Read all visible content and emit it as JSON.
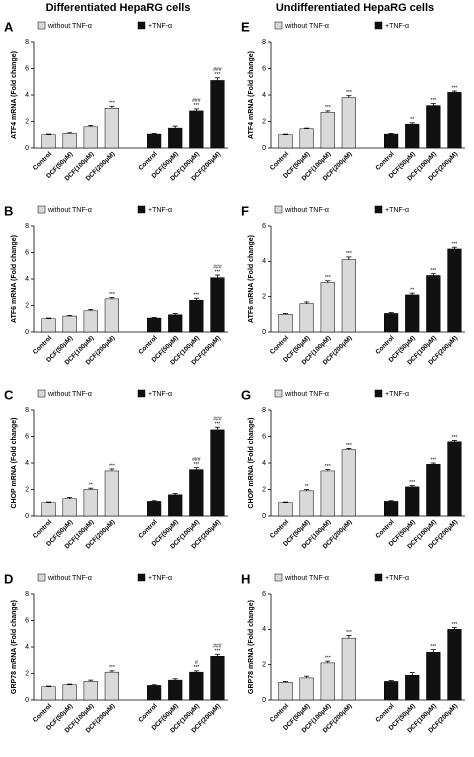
{
  "headers": [
    "Differentiated HepaRG cells",
    "Undifferentiated HepaRG cells"
  ],
  "chart_data": [
    {
      "type": "bar",
      "panel": "A",
      "ylabel": "ATF4 mRNA (Fold change)",
      "ylim": [
        0,
        8
      ],
      "yticks": [
        0,
        2,
        4,
        6,
        8
      ],
      "categories": [
        "Control",
        "DCF(50μM)",
        "DCF(100μM)",
        "DCF(200μM)",
        "Control",
        "DCF(50μM)",
        "DCF(100μM)",
        "DCF(200μM)"
      ],
      "series": [
        {
          "name": "without TNF-α",
          "color": "#d9d9d9",
          "values": [
            1,
            1.1,
            1.6,
            3.0,
            null,
            null,
            null,
            null
          ],
          "errors": [
            0.05,
            0.05,
            0.1,
            0.15,
            null,
            null,
            null,
            null
          ],
          "annotations": [
            null,
            null,
            null,
            [
              "***"
            ],
            null,
            null,
            null,
            null
          ]
        },
        {
          "name": "+TNF-α",
          "color": "#111111",
          "values": [
            null,
            null,
            null,
            null,
            1.05,
            1.5,
            2.8,
            5.1
          ],
          "errors": [
            null,
            null,
            null,
            null,
            0.05,
            0.15,
            0.15,
            0.2
          ],
          "annotations": [
            null,
            null,
            null,
            null,
            null,
            null,
            [
              "###",
              "***"
            ],
            [
              "###",
              "***"
            ]
          ]
        }
      ]
    },
    {
      "type": "bar",
      "panel": "B",
      "ylabel": "ATF6 mRNA (Fold change)",
      "ylim": [
        0,
        8
      ],
      "yticks": [
        0,
        2,
        4,
        6,
        8
      ],
      "categories": [
        "Control",
        "DCF(50μM)",
        "DCF(100μM)",
        "DCF(200μM)",
        "Control",
        "DCF(50μM)",
        "DCF(100μM)",
        "DCF(200μM)"
      ],
      "series": [
        {
          "name": "without TNF-α",
          "color": "#d9d9d9",
          "values": [
            1,
            1.2,
            1.6,
            2.5,
            null,
            null,
            null,
            null
          ],
          "errors": [
            0.05,
            0.05,
            0.1,
            0.1,
            null,
            null,
            null,
            null
          ],
          "annotations": [
            null,
            null,
            null,
            [
              "***"
            ],
            null,
            null,
            null,
            null
          ]
        },
        {
          "name": "+TNF-α",
          "color": "#111111",
          "values": [
            null,
            null,
            null,
            null,
            1.05,
            1.3,
            2.4,
            4.1
          ],
          "errors": [
            null,
            null,
            null,
            null,
            0.05,
            0.1,
            0.15,
            0.2
          ],
          "annotations": [
            null,
            null,
            null,
            null,
            null,
            null,
            [
              "***"
            ],
            [
              "###",
              "***"
            ]
          ]
        }
      ]
    },
    {
      "type": "bar",
      "panel": "C",
      "ylabel": "CHOP mRNA (Fold change)",
      "ylim": [
        0,
        8
      ],
      "yticks": [
        0,
        2,
        4,
        6,
        8
      ],
      "categories": [
        "Control",
        "DCF(50μM)",
        "DCF(100μM)",
        "DCF(200μM)",
        "Control",
        "DCF(50μM)",
        "DCF(100μM)",
        "DCF(200μM)"
      ],
      "series": [
        {
          "name": "without TNF-α",
          "color": "#d9d9d9",
          "values": [
            1,
            1.3,
            2.0,
            3.4,
            null,
            null,
            null,
            null
          ],
          "errors": [
            0.05,
            0.1,
            0.1,
            0.15,
            null,
            null,
            null,
            null
          ],
          "annotations": [
            null,
            null,
            [
              "**"
            ],
            [
              "***"
            ],
            null,
            null,
            null,
            null
          ]
        },
        {
          "name": "+TNF-α",
          "color": "#111111",
          "values": [
            null,
            null,
            null,
            null,
            1.1,
            1.6,
            3.5,
            6.5
          ],
          "errors": [
            null,
            null,
            null,
            null,
            0.05,
            0.1,
            0.15,
            0.2
          ],
          "annotations": [
            null,
            null,
            null,
            null,
            null,
            null,
            [
              "###",
              "***"
            ],
            [
              "###",
              "***"
            ]
          ]
        }
      ]
    },
    {
      "type": "bar",
      "panel": "D",
      "ylabel": "GRP78 mRNA (Fold change)",
      "ylim": [
        0,
        8
      ],
      "yticks": [
        0,
        2,
        4,
        6,
        8
      ],
      "categories": [
        "Control",
        "DCF(50μM)",
        "DCF(100μM)",
        "DCF(200μM)",
        "Control",
        "DCF(50μM)",
        "DCF(100μM)",
        "DCF(200μM)"
      ],
      "series": [
        {
          "name": "without TNF-α",
          "color": "#d9d9d9",
          "values": [
            1,
            1.15,
            1.4,
            2.1,
            null,
            null,
            null,
            null
          ],
          "errors": [
            0.05,
            0.05,
            0.1,
            0.1,
            null,
            null,
            null,
            null
          ],
          "annotations": [
            null,
            null,
            null,
            [
              "***"
            ],
            null,
            null,
            null,
            null
          ]
        },
        {
          "name": "+TNF-α",
          "color": "#111111",
          "values": [
            null,
            null,
            null,
            null,
            1.1,
            1.5,
            2.1,
            3.3
          ],
          "errors": [
            null,
            null,
            null,
            null,
            0.05,
            0.1,
            0.1,
            0.15
          ],
          "annotations": [
            null,
            null,
            null,
            null,
            null,
            null,
            [
              "#",
              "***"
            ],
            [
              "###",
              "***"
            ]
          ]
        }
      ]
    },
    {
      "type": "bar",
      "panel": "E",
      "ylabel": "ATF4 mRNA (Fold change)",
      "ylim": [
        0,
        8
      ],
      "yticks": [
        0,
        2,
        4,
        6,
        8
      ],
      "categories": [
        "Control",
        "DCF(50μM)",
        "DCF(100μM)",
        "DCF(200μM)",
        "Control",
        "DCF(50μM)",
        "DCF(100μM)",
        "DCF(200μM)"
      ],
      "series": [
        {
          "name": "without TNF-α",
          "color": "#d9d9d9",
          "values": [
            1,
            1.45,
            2.7,
            3.8,
            null,
            null,
            null,
            null
          ],
          "errors": [
            0.05,
            0.05,
            0.1,
            0.15,
            null,
            null,
            null,
            null
          ],
          "annotations": [
            null,
            null,
            [
              "***"
            ],
            [
              "***"
            ],
            null,
            null,
            null,
            null
          ]
        },
        {
          "name": "+TNF-α",
          "color": "#111111",
          "values": [
            null,
            null,
            null,
            null,
            1.05,
            1.8,
            3.2,
            4.2
          ],
          "errors": [
            null,
            null,
            null,
            null,
            0.05,
            0.1,
            0.15,
            0.1
          ],
          "annotations": [
            null,
            null,
            null,
            null,
            null,
            [
              "**"
            ],
            [
              "***"
            ],
            [
              "***"
            ]
          ]
        }
      ]
    },
    {
      "type": "bar",
      "panel": "F",
      "ylabel": "ATF6 mRNA (Fold change)",
      "ylim": [
        0,
        6
      ],
      "yticks": [
        0,
        2,
        4,
        6
      ],
      "categories": [
        "Control",
        "DCF(50μM)",
        "DCF(100μM)",
        "DCF(200μM)",
        "Control",
        "DCF(50μM)",
        "DCF(100μM)",
        "DCF(200μM)"
      ],
      "series": [
        {
          "name": "without TNF-α",
          "color": "#d9d9d9",
          "values": [
            1,
            1.6,
            2.8,
            4.1,
            null,
            null,
            null,
            null
          ],
          "errors": [
            0.05,
            0.1,
            0.1,
            0.15,
            null,
            null,
            null,
            null
          ],
          "annotations": [
            null,
            null,
            [
              "***"
            ],
            [
              "***"
            ],
            null,
            null,
            null,
            null
          ]
        },
        {
          "name": "+TNF-α",
          "color": "#111111",
          "values": [
            null,
            null,
            null,
            null,
            1.05,
            2.1,
            3.2,
            4.7
          ],
          "errors": [
            null,
            null,
            null,
            null,
            0.05,
            0.1,
            0.1,
            0.1
          ],
          "annotations": [
            null,
            null,
            null,
            null,
            null,
            [
              "**"
            ],
            [
              "***"
            ],
            [
              "***"
            ]
          ]
        }
      ]
    },
    {
      "type": "bar",
      "panel": "G",
      "ylabel": "CHOP mRNA (Fold change)",
      "ylim": [
        0,
        8
      ],
      "yticks": [
        0,
        2,
        4,
        6,
        8
      ],
      "categories": [
        "Control",
        "DCF(50μM)",
        "DCF(100μM)",
        "DCF(200μM)",
        "Control",
        "DCF(50μM)",
        "DCF(100μM)",
        "DCF(200μM)"
      ],
      "series": [
        {
          "name": "without TNF-α",
          "color": "#d9d9d9",
          "values": [
            1,
            1.9,
            3.4,
            5.0,
            null,
            null,
            null,
            null
          ],
          "errors": [
            0.05,
            0.1,
            0.1,
            0.1,
            null,
            null,
            null,
            null
          ],
          "annotations": [
            null,
            [
              "**"
            ],
            [
              "***"
            ],
            [
              "***"
            ],
            null,
            null,
            null,
            null
          ]
        },
        {
          "name": "+TNF-α",
          "color": "#111111",
          "values": [
            null,
            null,
            null,
            null,
            1.1,
            2.2,
            3.9,
            5.6
          ],
          "errors": [
            null,
            null,
            null,
            null,
            0.05,
            0.1,
            0.1,
            0.1
          ],
          "annotations": [
            null,
            null,
            null,
            null,
            null,
            [
              "***"
            ],
            [
              "***"
            ],
            [
              "***"
            ]
          ]
        }
      ]
    },
    {
      "type": "bar",
      "panel": "H",
      "ylabel": "GRP78 mRNA (Fold change)",
      "ylim": [
        0,
        6
      ],
      "yticks": [
        0,
        2,
        4,
        6
      ],
      "categories": [
        "Control",
        "DCF(50μM)",
        "DCF(100μM)",
        "DCF(200μM)",
        "Control",
        "DCF(50μM)",
        "DCF(100μM)",
        "DCF(200μM)"
      ],
      "series": [
        {
          "name": "without TNF-α",
          "color": "#d9d9d9",
          "values": [
            1,
            1.25,
            2.1,
            3.5,
            null,
            null,
            null,
            null
          ],
          "errors": [
            0.05,
            0.1,
            0.1,
            0.15,
            null,
            null,
            null,
            null
          ],
          "annotations": [
            null,
            null,
            [
              "***"
            ],
            [
              "***"
            ],
            null,
            null,
            null,
            null
          ]
        },
        {
          "name": "+TNF-α",
          "color": "#111111",
          "values": [
            null,
            null,
            null,
            null,
            1.05,
            1.4,
            2.7,
            4.0
          ],
          "errors": [
            null,
            null,
            null,
            null,
            0.05,
            0.15,
            0.15,
            0.1
          ],
          "annotations": [
            null,
            null,
            null,
            null,
            null,
            null,
            [
              "***"
            ],
            [
              "***"
            ]
          ]
        }
      ]
    }
  ]
}
